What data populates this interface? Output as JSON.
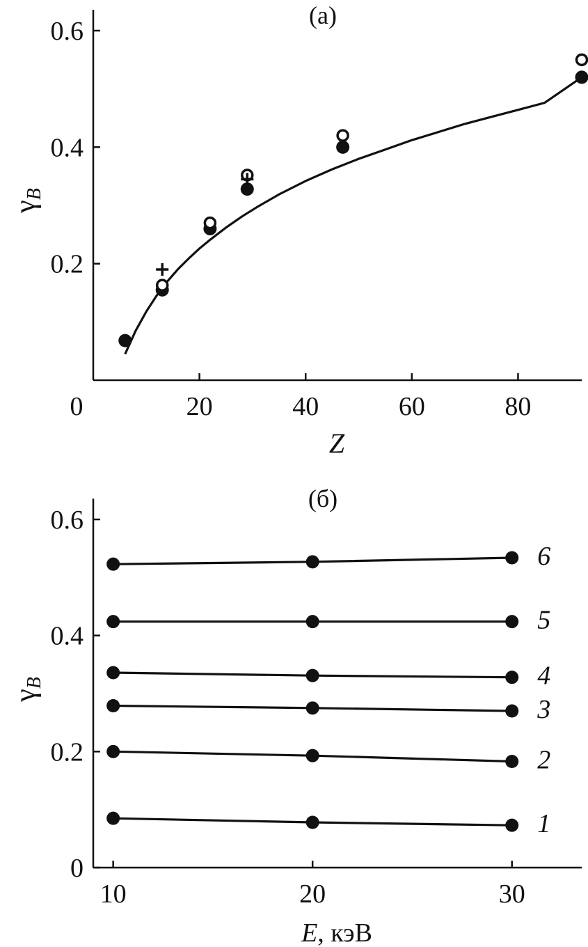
{
  "chart_data": [
    {
      "type": "scatter",
      "panel_label": "(a)",
      "xlabel": "Z",
      "ylabel_main": "γ",
      "ylabel_sub": "B",
      "xlim": [
        0,
        92
      ],
      "ylim": [
        0,
        0.6
      ],
      "xticks": [
        0,
        20,
        40,
        60,
        80
      ],
      "yticks": [
        0.2,
        0.4,
        0.6
      ],
      "xtick_labels": [
        "0",
        "20",
        "40",
        "60",
        "80"
      ],
      "ytick_labels": [
        "0.2",
        "0.4",
        "0.6"
      ],
      "grid": false,
      "series": [
        {
          "marker": "filled-circle",
          "x": [
            6,
            13,
            22,
            29,
            47,
            92
          ],
          "y": [
            0.068,
            0.155,
            0.26,
            0.328,
            0.4,
            0.52
          ]
        },
        {
          "marker": "open-circle",
          "x": [
            13,
            22,
            29,
            47,
            92
          ],
          "y": [
            0.163,
            0.27,
            0.352,
            0.42,
            0.55
          ]
        },
        {
          "marker": "plus",
          "x": [
            13,
            29
          ],
          "y": [
            0.19,
            0.345
          ]
        }
      ],
      "fit_curve": {
        "x": [
          6,
          8,
          10,
          12,
          14,
          16,
          18,
          20,
          22,
          25,
          28,
          31,
          35,
          40,
          45,
          50,
          55,
          60,
          65,
          70,
          75,
          80,
          85,
          92
        ],
        "y": [
          0.045,
          0.085,
          0.118,
          0.146,
          0.17,
          0.191,
          0.209,
          0.226,
          0.241,
          0.262,
          0.281,
          0.298,
          0.319,
          0.342,
          0.362,
          0.38,
          0.396,
          0.412,
          0.426,
          0.44,
          0.452,
          0.464,
          0.476,
          0.52
        ]
      }
    },
    {
      "type": "line",
      "panel_label": "(б)",
      "xlabel": "E, кэВ",
      "xlabel_var": "E",
      "xlabel_unit": ", кэВ",
      "ylabel_main": "γ",
      "ylabel_sub": "B",
      "xlim": [
        9,
        33.5
      ],
      "ylim": [
        0,
        0.62
      ],
      "xticks": [
        10,
        20,
        30
      ],
      "yticks": [
        0,
        0.2,
        0.4,
        0.6
      ],
      "xtick_labels": [
        "10",
        "20",
        "30"
      ],
      "ytick_labels": [
        "0",
        "0.2",
        "0.4",
        "0.6"
      ],
      "grid": false,
      "x": [
        10,
        20,
        30
      ],
      "series": [
        {
          "name": "1",
          "values": [
            0.085,
            0.078,
            0.073
          ]
        },
        {
          "name": "2",
          "values": [
            0.2,
            0.193,
            0.183
          ]
        },
        {
          "name": "3",
          "values": [
            0.279,
            0.275,
            0.27
          ]
        },
        {
          "name": "4",
          "values": [
            0.336,
            0.331,
            0.328
          ]
        },
        {
          "name": "5",
          "values": [
            0.424,
            0.424,
            0.424
          ]
        },
        {
          "name": "6",
          "values": [
            0.523,
            0.527,
            0.534
          ]
        }
      ]
    }
  ]
}
